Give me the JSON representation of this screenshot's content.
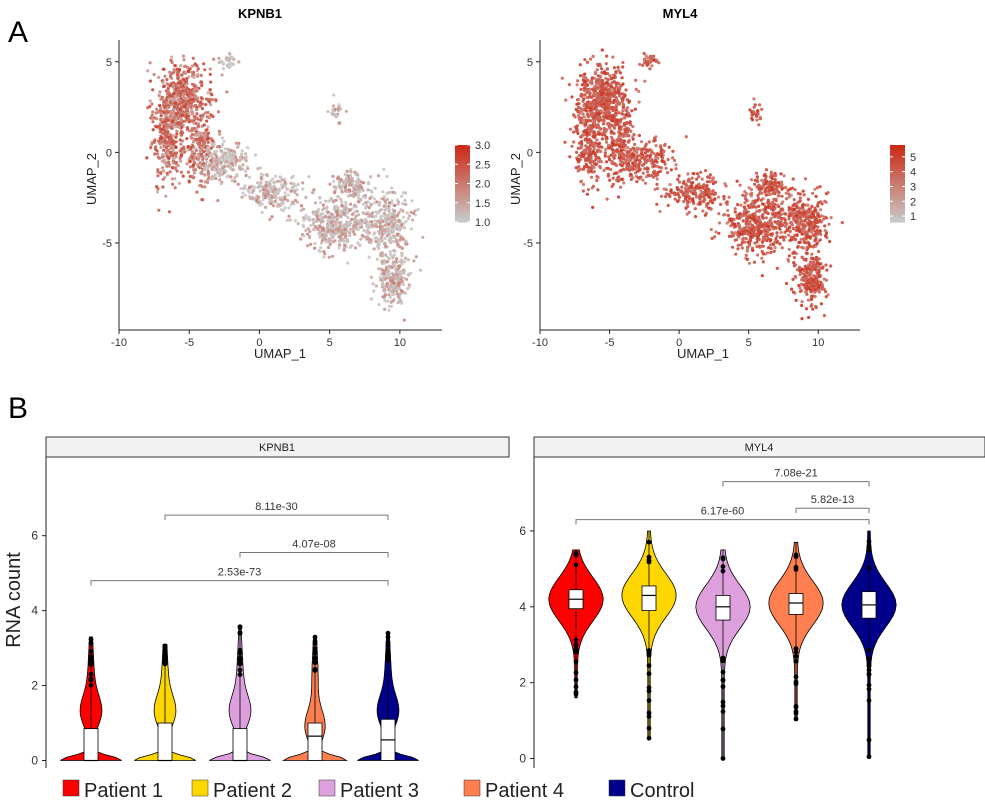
{
  "panel_labels": [
    "A",
    "B"
  ],
  "colors": {
    "low": "#c8c8c8",
    "high": "#cc2a16",
    "axis": "#222222",
    "bracket": "#777777",
    "strip_fill": "#f2f2f2",
    "groups": [
      "#ff0000",
      "#ffd700",
      "#dda0dd",
      "#ff7f50",
      "#00008b"
    ]
  },
  "chart_data": [
    {
      "type": "scatter",
      "title": "KPNB1",
      "xlabel": "UMAP_1",
      "ylabel": "UMAP_2",
      "xticks": [
        "-10",
        "-5",
        "0",
        "5",
        "10"
      ],
      "yticks": [
        "5",
        "0",
        "-5"
      ],
      "xlim": [
        -10,
        13
      ],
      "ylim": [
        -9.8,
        6.2
      ],
      "colorbar": {
        "min": 1.0,
        "max": 3.0,
        "ticks": [
          "3.0",
          "2.5",
          "2.0",
          "1.5",
          "1.0"
        ]
      },
      "grid": false
    },
    {
      "type": "scatter",
      "title": "MYL4",
      "xlabel": "UMAP_1",
      "ylabel": "UMAP_2",
      "xticks": [
        "-10",
        "-5",
        "0",
        "5",
        "10"
      ],
      "yticks": [
        "5",
        "0",
        "-5"
      ],
      "xlim": [
        -10,
        13
      ],
      "ylim": [
        -9.8,
        6.2
      ],
      "colorbar": {
        "min": 0.6,
        "max": 5.8,
        "ticks": [
          "5",
          "4",
          "3",
          "2",
          "1"
        ]
      },
      "grid": false
    },
    {
      "type": "violin",
      "title": "KPNB1",
      "ylabel": "RNA count",
      "yticks": [
        "0",
        "2",
        "4",
        "6"
      ],
      "ylim": [
        -0.2,
        8.1
      ],
      "groups": [
        "Patient 1",
        "Patient 2",
        "Patient 3",
        "Patient 4",
        "Control"
      ],
      "box": [
        {
          "q1": 0,
          "median": 0,
          "q3": 0.85,
          "whisker_high": 2.0,
          "max": 3.3
        },
        {
          "q1": 0,
          "median": 0,
          "q3": 1.0,
          "whisker_high": 2.5,
          "max": 3.1
        },
        {
          "q1": 0,
          "median": 0,
          "q3": 0.85,
          "whisker_high": 2.1,
          "max": 3.6
        },
        {
          "q1": 0,
          "median": 0.65,
          "q3": 1.0,
          "whisker_high": 2.4,
          "max": 3.3
        },
        {
          "q1": 0,
          "median": 0.55,
          "q3": 1.1,
          "whisker_high": 2.6,
          "max": 3.4
        }
      ],
      "comparisons": [
        {
          "from": 2,
          "to": 5,
          "label": "8.11e-30",
          "y": 6.55
        },
        {
          "from": 3,
          "to": 5,
          "label": "4.07e-08",
          "y": 5.55
        },
        {
          "from": 1,
          "to": 5,
          "label": "2.53e-73",
          "y": 4.8
        }
      ]
    },
    {
      "type": "violin",
      "title": "MYL4",
      "ylabel": "",
      "yticks": [
        "0",
        "2",
        "4",
        "6"
      ],
      "ylim": [
        -0.25,
        7.95
      ],
      "groups": [
        "Patient 1",
        "Patient 2",
        "Patient 3",
        "Patient 4",
        "Control"
      ],
      "box": [
        {
          "q1": 3.95,
          "median": 4.2,
          "q3": 4.45,
          "min": 1.6,
          "max": 5.5
        },
        {
          "q1": 3.9,
          "median": 4.3,
          "q3": 4.55,
          "min": 0.5,
          "max": 6.0
        },
        {
          "q1": 3.65,
          "median": 4.0,
          "q3": 4.3,
          "min": 0.0,
          "max": 5.5
        },
        {
          "q1": 3.8,
          "median": 4.1,
          "q3": 4.35,
          "min": 1.0,
          "max": 5.7
        },
        {
          "q1": 3.7,
          "median": 4.05,
          "q3": 4.4,
          "min": 0.0,
          "max": 6.0
        }
      ],
      "comparisons": [
        {
          "from": 3,
          "to": 5,
          "label": "7.08e-21",
          "y": 7.3
        },
        {
          "from": 4,
          "to": 5,
          "label": "5.82e-13",
          "y": 6.6
        },
        {
          "from": 1,
          "to": 5,
          "label": "6.17e-60",
          "y": 6.3
        }
      ]
    }
  ],
  "legend": [
    "Patient 1",
    "Patient 2",
    "Patient 3",
    "Patient 4",
    "Control"
  ]
}
